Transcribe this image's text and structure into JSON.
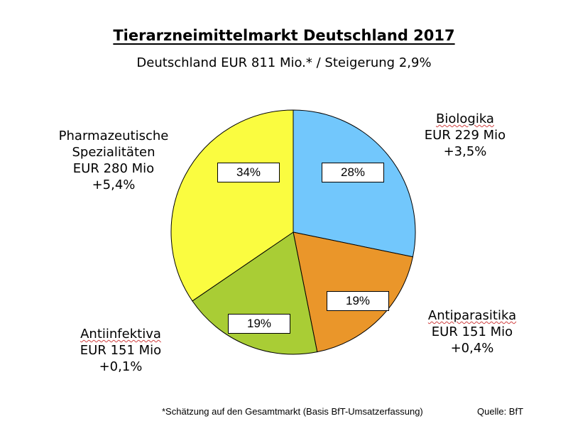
{
  "chart_data": {
    "type": "pie",
    "title": "Tierarzneimittelmarkt Deutschland 2017",
    "subtitle": "Deutschland EUR 811 Mio.* / Steigerung 2,9%",
    "slices": [
      {
        "name": "Biologika",
        "value_text": "EUR 229 Mio",
        "value": 229,
        "change": "+3,5%",
        "percent_label": "28%",
        "percent": 28,
        "color": "#72c7fc"
      },
      {
        "name": "Antiparasitika",
        "value_text": "EUR 151 Mio",
        "value": 151,
        "change": "+0,4%",
        "percent_label": "19%",
        "percent": 19,
        "color": "#ea962a"
      },
      {
        "name": "Antiinfektiva",
        "value_text": "EUR 151 Mio",
        "value": 151,
        "change": "+0,1%",
        "percent_label": "19%",
        "percent": 19,
        "color": "#a9cd35"
      },
      {
        "name": "Pharmazeutische Spezialitäten",
        "name_lines": [
          "Pharmazeutische",
          "Spezialitäten"
        ],
        "value_text": "EUR 280 Mio",
        "value": 280,
        "change": "+5,4%",
        "percent_label": "34%",
        "percent": 34,
        "color": "#fafc40"
      }
    ],
    "footnote": "*Schätzung auf den Gesamtmarkt (Basis BfT-Umsatzerfassung)",
    "source": "Quelle: BfT"
  }
}
